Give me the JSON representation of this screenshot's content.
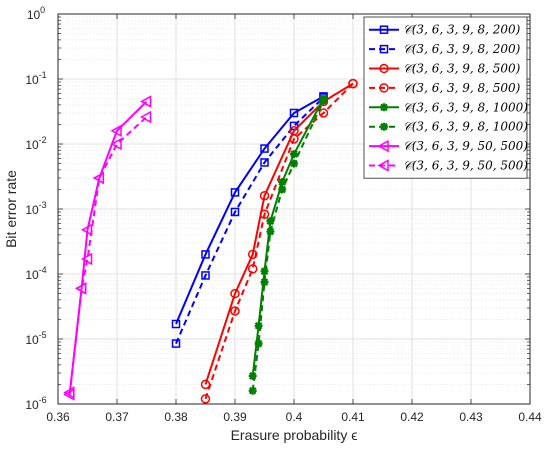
{
  "chart_data": {
    "type": "line",
    "xlabel": "Erasure probability ϵ",
    "ylabel": "Bit error rate",
    "xlim": [
      0.36,
      0.44
    ],
    "ylim": [
      1e-06,
      1
    ],
    "yscale": "log",
    "grid": true,
    "legend_position": "top-right",
    "x_ticks": [
      "0.36",
      "0.37",
      "0.38",
      "0.39",
      "0.4",
      "0.41",
      "0.42",
      "0.43",
      "0.44"
    ],
    "y_ticks": [
      {
        "base": "10",
        "exp": "0"
      },
      {
        "base": "10",
        "exp": "-1"
      },
      {
        "base": "10",
        "exp": "-2"
      },
      {
        "base": "10",
        "exp": "-3"
      },
      {
        "base": "10",
        "exp": "-4"
      },
      {
        "base": "10",
        "exp": "-5"
      },
      {
        "base": "10",
        "exp": "-6"
      }
    ],
    "series": [
      {
        "name": "𝒞(3, 6, 3, 9, 8, 200)",
        "color": "#0000ff",
        "dash": false,
        "marker": "square",
        "x": [
          0.38,
          0.385,
          0.39,
          0.395,
          0.4,
          0.405
        ],
        "y": [
          1.7e-05,
          0.0002,
          0.0018,
          0.0085,
          0.03,
          0.054
        ]
      },
      {
        "name": "𝒞(3, 6, 3, 9, 8, 200)",
        "color": "#0000ff",
        "dash": true,
        "marker": "square",
        "x": [
          0.38,
          0.385,
          0.39,
          0.395,
          0.4,
          0.405
        ],
        "y": [
          8.5e-06,
          9.5e-05,
          0.0009,
          0.0052,
          0.019,
          0.052
        ]
      },
      {
        "name": "𝒞(3, 6, 3, 9, 8, 500)",
        "color": "#ff0000",
        "dash": false,
        "marker": "circle",
        "x": [
          0.385,
          0.39,
          0.393,
          0.395,
          0.4,
          0.405,
          0.41
        ],
        "y": [
          2e-06,
          5e-05,
          0.0002,
          0.0016,
          0.016,
          0.045,
          0.085
        ]
      },
      {
        "name": "𝒞(3, 6, 3, 9, 8, 500)",
        "color": "#ff0000",
        "dash": true,
        "marker": "circle",
        "x": [
          0.385,
          0.39,
          0.393,
          0.395,
          0.4,
          0.405,
          0.41
        ],
        "y": [
          1.2e-06,
          2.7e-05,
          0.00012,
          0.00083,
          0.012,
          0.03,
          0.085
        ]
      },
      {
        "name": "𝒞(3, 6, 3, 9, 8, 1000)",
        "color": "#007f00",
        "dash": false,
        "marker": "star",
        "x": [
          0.393,
          0.394,
          0.395,
          0.396,
          0.398,
          0.4,
          0.405
        ],
        "y": [
          2.7e-06,
          1.6e-05,
          0.00011,
          0.00065,
          0.0026,
          0.007,
          0.05
        ]
      },
      {
        "name": "𝒞(3, 6, 3, 9, 8, 1000)",
        "color": "#007f00",
        "dash": true,
        "marker": "star",
        "x": [
          0.393,
          0.394,
          0.395,
          0.396,
          0.398,
          0.4,
          0.405
        ],
        "y": [
          1.6e-06,
          8.5e-06,
          7.5e-05,
          0.00045,
          0.002,
          0.005,
          0.046
        ]
      },
      {
        "name": "𝒞(3, 6, 3, 9, 50, 500)",
        "color": "#ff00ff",
        "dash": false,
        "marker": "triangle-left",
        "x": [
          0.362,
          0.364,
          0.365,
          0.367,
          0.37,
          0.375
        ],
        "y": [
          1.5e-06,
          6e-05,
          0.00048,
          0.003,
          0.016,
          0.045
        ]
      },
      {
        "name": "𝒞(3, 6, 3, 9, 50, 500)",
        "color": "#ff00ff",
        "dash": true,
        "marker": "triangle-left",
        "x": [
          0.362,
          0.364,
          0.365,
          0.367,
          0.37,
          0.375
        ],
        "y": [
          1.4e-06,
          6e-05,
          0.00017,
          0.003,
          0.01,
          0.026
        ]
      }
    ]
  }
}
